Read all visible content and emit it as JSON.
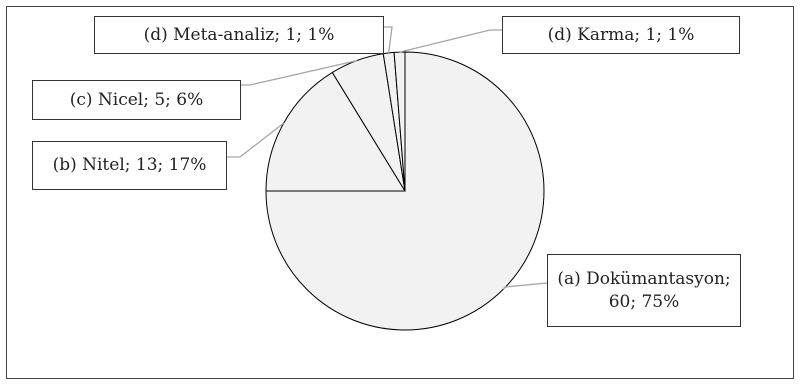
{
  "chart_data": {
    "type": "pie",
    "slices": [
      {
        "label": "(a) Dokümantasyon; 60; 75%",
        "category": "(a) Dokümantasyon",
        "value": 60,
        "percent": 75
      },
      {
        "label": "(b) Nitel; 13; 17%",
        "category": "(b) Nitel",
        "value": 13,
        "percent": 17
      },
      {
        "label": "(c) Nicel; 5; 6%",
        "category": "(c) Nicel",
        "value": 5,
        "percent": 6
      },
      {
        "label": "(d) Meta-analiz; 1; 1%",
        "category": "(d) Meta-analiz",
        "value": 1,
        "percent": 1
      },
      {
        "label": "(d) Karma; 1; 1%",
        "category": "(d) Karma",
        "value": 1,
        "percent": 1
      }
    ],
    "colors": {
      "fill": "#f2f2f2",
      "stroke": "#000000",
      "leader": "#a6a6a6"
    }
  }
}
